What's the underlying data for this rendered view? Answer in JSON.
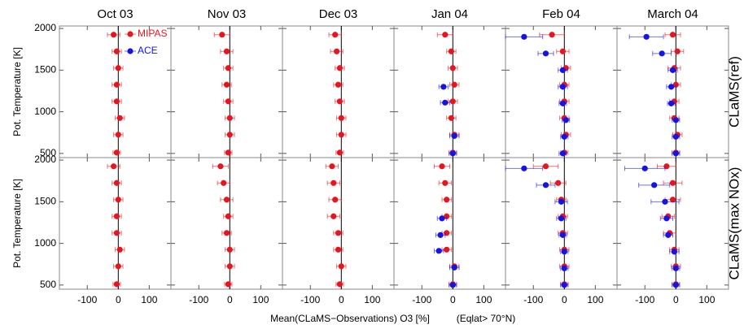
{
  "y_label": "Pot. Temperature [K]",
  "x_label": "Mean(CLaMS−Observations) O3 [%]",
  "x_note": "(Eqlat> 70°N)",
  "row_labels": [
    "CLaMS(ref)",
    "CLaMS(max NOx)"
  ],
  "chart_data": [
    {
      "type": "scatter",
      "title": "Oct 03",
      "legend": "upper right",
      "xlim": [
        -190,
        170
      ],
      "xticks": [
        -100,
        0,
        100
      ],
      "ylim": [
        450,
        2030
      ],
      "yticks": [
        500,
        1000,
        1500,
        2000
      ],
      "series": [
        {
          "name": "MIPAS",
          "color": "#e8141e",
          "x": [
            -15,
            -5,
            0,
            -5,
            -5,
            5,
            0,
            -5
          ],
          "x_err": [
            20,
            15,
            15,
            15,
            15,
            15,
            15,
            12
          ],
          "y": [
            1925,
            1725,
            1525,
            1325,
            1125,
            925,
            725,
            510
          ]
        },
        {
          "name": "ACE",
          "color": "#1414e8",
          "x": [],
          "x_err": [],
          "y": []
        }
      ]
    },
    {
      "type": "scatter",
      "title": "Nov 03",
      "xlim": [
        -190,
        170
      ],
      "xticks": [
        -100,
        0,
        100
      ],
      "ylim": [
        450,
        2030
      ],
      "yticks": [
        500,
        1000,
        1500,
        2000
      ],
      "series": [
        {
          "name": "MIPAS",
          "color": "#e8141e",
          "x": [
            -25,
            -10,
            -5,
            -10,
            -5,
            0,
            0,
            -5
          ],
          "x_err": [
            25,
            20,
            15,
            15,
            15,
            15,
            15,
            12
          ],
          "y": [
            1925,
            1725,
            1525,
            1325,
            1125,
            925,
            725,
            510
          ]
        }
      ]
    },
    {
      "type": "scatter",
      "title": "Dec 03",
      "xlim": [
        -190,
        170
      ],
      "xticks": [
        -100,
        0,
        100
      ],
      "ylim": [
        450,
        2030
      ],
      "yticks": [
        500,
        1000,
        1500,
        2000
      ],
      "series": [
        {
          "name": "MIPAS",
          "color": "#e8141e",
          "x": [
            -20,
            -15,
            -5,
            -10,
            -5,
            0,
            0,
            -5
          ],
          "x_err": [
            20,
            20,
            15,
            15,
            15,
            15,
            15,
            12
          ],
          "y": [
            1925,
            1725,
            1525,
            1325,
            1125,
            925,
            725,
            510
          ]
        }
      ]
    },
    {
      "type": "scatter",
      "title": "Jan 04",
      "xlim": [
        -190,
        170
      ],
      "xticks": [
        -100,
        0,
        100
      ],
      "ylim": [
        450,
        2030
      ],
      "yticks": [
        500,
        1000,
        1500,
        2000
      ],
      "series": [
        {
          "name": "MIPAS",
          "color": "#e8141e",
          "x": [
            -25,
            -5,
            0,
            5,
            0,
            -5,
            5,
            0
          ],
          "x_err": [
            25,
            15,
            15,
            15,
            15,
            15,
            15,
            12
          ],
          "y": [
            1925,
            1725,
            1525,
            1325,
            1125,
            925,
            725,
            510
          ]
        },
        {
          "name": "ACE",
          "color": "#1414e8",
          "x": [
            -30,
            -25,
            5,
            0
          ],
          "x_err": [
            15,
            15,
            15,
            12
          ],
          "y": [
            1300,
            1110,
            710,
            500
          ]
        }
      ]
    },
    {
      "type": "scatter",
      "title": "Feb 04",
      "xlim": [
        -190,
        170
      ],
      "xticks": [
        -100,
        0,
        100
      ],
      "ylim": [
        450,
        2030
      ],
      "yticks": [
        500,
        1000,
        1500,
        2000
      ],
      "series": [
        {
          "name": "MIPAS",
          "color": "#e8141e",
          "x": [
            -40,
            -5,
            5,
            0,
            0,
            0,
            5,
            0
          ],
          "x_err": [
            40,
            20,
            15,
            15,
            15,
            15,
            15,
            12
          ],
          "y": [
            1925,
            1725,
            1525,
            1325,
            1125,
            925,
            725,
            510
          ]
        },
        {
          "name": "ACE",
          "color": "#1414e8",
          "x": [
            -130,
            -60,
            -5,
            -5,
            -5,
            5,
            0,
            -5
          ],
          "x_err": [
            60,
            25,
            15,
            15,
            12,
            12,
            12,
            12
          ],
          "y": [
            1900,
            1700,
            1500,
            1300,
            1100,
            900,
            700,
            500
          ]
        }
      ]
    },
    {
      "type": "scatter",
      "title": "March 04",
      "xlim": [
        -190,
        170
      ],
      "xticks": [
        -100,
        0,
        100
      ],
      "ylim": [
        450,
        2030
      ],
      "yticks": [
        500,
        1000,
        1500,
        2000
      ],
      "series": [
        {
          "name": "MIPAS",
          "color": "#e8141e",
          "x": [
            -10,
            5,
            -5,
            0,
            -5,
            -5,
            5,
            0
          ],
          "x_err": [
            25,
            20,
            20,
            15,
            15,
            15,
            15,
            12
          ],
          "y": [
            1925,
            1725,
            1525,
            1325,
            1125,
            925,
            725,
            510
          ]
        },
        {
          "name": "ACE",
          "color": "#1414e8",
          "x": [
            -95,
            -45,
            -10,
            -15,
            -15,
            0,
            0,
            0
          ],
          "x_err": [
            55,
            30,
            15,
            15,
            12,
            12,
            12,
            12
          ],
          "y": [
            1900,
            1700,
            1500,
            1300,
            1100,
            900,
            700,
            500
          ]
        }
      ]
    },
    {
      "type": "scatter",
      "xlim": [
        -190,
        170
      ],
      "xticks": [
        -100,
        0,
        100
      ],
      "ylim": [
        450,
        2030
      ],
      "yticks": [
        500,
        1000,
        1500,
        2000
      ],
      "series": [
        {
          "name": "MIPAS",
          "color": "#e8141e",
          "x": [
            -15,
            -5,
            0,
            -5,
            -5,
            5,
            0,
            -5
          ],
          "x_err": [
            20,
            15,
            15,
            15,
            15,
            15,
            15,
            12
          ],
          "y": [
            1925,
            1725,
            1525,
            1325,
            1125,
            925,
            725,
            510
          ]
        }
      ]
    },
    {
      "type": "scatter",
      "xlim": [
        -190,
        170
      ],
      "xticks": [
        -100,
        0,
        100
      ],
      "ylim": [
        450,
        2030
      ],
      "yticks": [
        500,
        1000,
        1500,
        2000
      ],
      "series": [
        {
          "name": "MIPAS",
          "color": "#e8141e",
          "x": [
            -30,
            -20,
            -10,
            -5,
            -10,
            0,
            0,
            -5
          ],
          "x_err": [
            25,
            20,
            20,
            15,
            15,
            15,
            15,
            12
          ],
          "y": [
            1925,
            1725,
            1525,
            1325,
            1125,
            925,
            725,
            510
          ]
        }
      ]
    },
    {
      "type": "scatter",
      "xlim": [
        -190,
        170
      ],
      "xticks": [
        -100,
        0,
        100
      ],
      "ylim": [
        450,
        2030
      ],
      "yticks": [
        500,
        1000,
        1500,
        2000
      ],
      "series": [
        {
          "name": "MIPAS",
          "color": "#e8141e",
          "x": [
            -30,
            -25,
            -20,
            -25,
            -10,
            -10,
            0,
            -5
          ],
          "x_err": [
            20,
            20,
            20,
            20,
            15,
            15,
            15,
            12
          ],
          "y": [
            1925,
            1725,
            1525,
            1325,
            1125,
            925,
            725,
            510
          ]
        }
      ]
    },
    {
      "type": "scatter",
      "xlim": [
        -190,
        170
      ],
      "xticks": [
        -100,
        0,
        100
      ],
      "ylim": [
        450,
        2030
      ],
      "yticks": [
        500,
        1000,
        1500,
        2000
      ],
      "series": [
        {
          "name": "MIPAS",
          "color": "#e8141e",
          "x": [
            -35,
            -25,
            -20,
            -20,
            -20,
            -20,
            5,
            0
          ],
          "x_err": [
            25,
            20,
            15,
            15,
            15,
            15,
            15,
            12
          ],
          "y": [
            1925,
            1725,
            1525,
            1325,
            1125,
            925,
            725,
            510
          ]
        },
        {
          "name": "ACE",
          "color": "#1414e8",
          "x": [
            -35,
            -40,
            -45,
            5,
            0
          ],
          "x_err": [
            15,
            15,
            15,
            15,
            12
          ],
          "y": [
            1300,
            1100,
            910,
            710,
            500
          ]
        }
      ]
    },
    {
      "type": "scatter",
      "xlim": [
        -190,
        170
      ],
      "xticks": [
        -100,
        0,
        100
      ],
      "ylim": [
        450,
        2030
      ],
      "yticks": [
        500,
        1000,
        1500,
        2000
      ],
      "series": [
        {
          "name": "MIPAS",
          "color": "#e8141e",
          "x": [
            -60,
            -20,
            -10,
            -5,
            -5,
            0,
            0,
            0
          ],
          "x_err": [
            40,
            25,
            15,
            15,
            15,
            15,
            15,
            12
          ],
          "y": [
            1925,
            1725,
            1525,
            1325,
            1125,
            925,
            725,
            510
          ]
        },
        {
          "name": "ACE",
          "color": "#1414e8",
          "x": [
            -130,
            -60,
            -10,
            -10,
            -5,
            0,
            0,
            0
          ],
          "x_err": [
            60,
            30,
            20,
            15,
            12,
            12,
            12,
            12
          ],
          "y": [
            1900,
            1700,
            1500,
            1300,
            1100,
            900,
            700,
            500
          ]
        }
      ]
    },
    {
      "type": "scatter",
      "xlim": [
        -190,
        170
      ],
      "xticks": [
        -100,
        0,
        100
      ],
      "ylim": [
        450,
        2030
      ],
      "yticks": [
        500,
        1000,
        1500,
        2000
      ],
      "series": [
        {
          "name": "MIPAS",
          "color": "#e8141e",
          "x": [
            -30,
            -10,
            -10,
            -25,
            -20,
            -5,
            0,
            0
          ],
          "x_err": [
            30,
            30,
            25,
            20,
            20,
            15,
            15,
            12
          ],
          "y": [
            1925,
            1725,
            1525,
            1325,
            1125,
            925,
            725,
            510
          ]
        },
        {
          "name": "ACE",
          "color": "#1414e8",
          "x": [
            -100,
            -70,
            -35,
            -30,
            -25,
            -5,
            0,
            0
          ],
          "x_err": [
            65,
            50,
            45,
            20,
            15,
            15,
            12,
            12
          ],
          "y": [
            1900,
            1700,
            1500,
            1300,
            1100,
            900,
            700,
            500
          ]
        }
      ]
    }
  ]
}
